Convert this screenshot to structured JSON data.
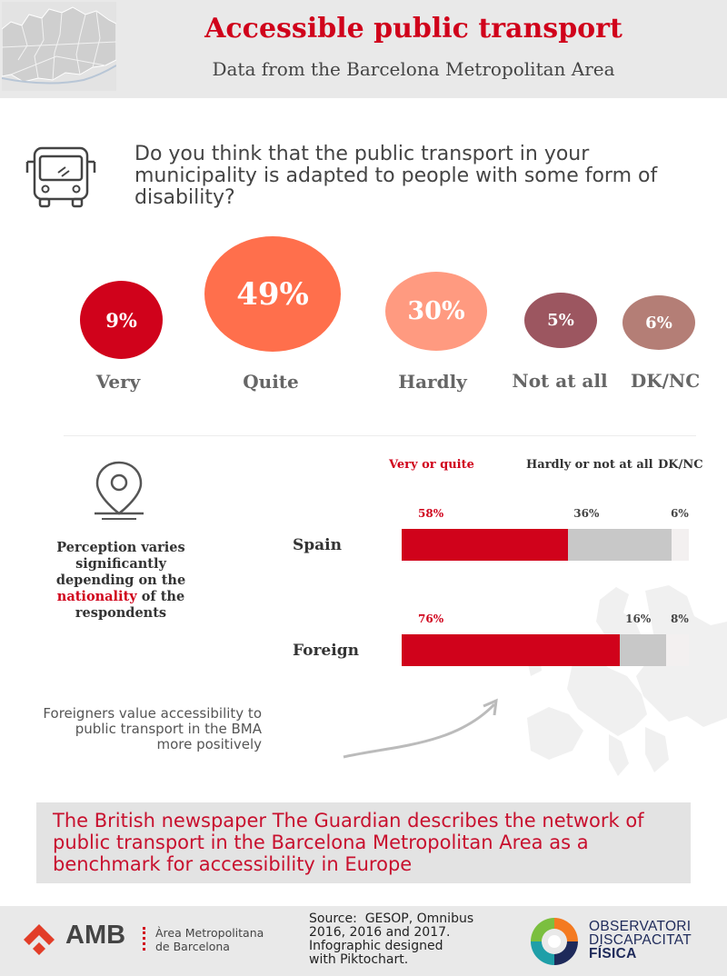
{
  "header": {
    "title": "Accessible public transport",
    "subtitle": "Data from the Barcelona Metropolitan Area"
  },
  "question": {
    "icon": "bus-icon",
    "text": "Do you think that the public transport in your municipality is adapted to people with some form of disability?"
  },
  "responses": [
    {
      "label": "Very",
      "value": 9,
      "display": "9%",
      "color": "#d0021b"
    },
    {
      "label": "Quite",
      "value": 49,
      "display": "49%",
      "color": "#ff6f4c"
    },
    {
      "label": "Hardly",
      "value": 30,
      "display": "30%",
      "color": "#ff9a80"
    },
    {
      "label": "Not at all",
      "value": 5,
      "display": "5%",
      "color": "#9c5660"
    },
    {
      "label": "DK/NC",
      "value": 6,
      "display": "6%",
      "color": "#b47e76"
    }
  ],
  "nationality": {
    "icon": "location-pin-icon",
    "text_before": "Perception varies significantly depending on the",
    "highlight": "nationality",
    "text_after": "of the respondents"
  },
  "chart_data": {
    "type": "bar",
    "orientation": "horizontal",
    "stacked": true,
    "categories": [
      "Spain",
      "Foreign"
    ],
    "series": [
      {
        "name": "Very or quite",
        "values": [
          58,
          76
        ],
        "labels": [
          "58%",
          "76%"
        ],
        "color": "#d0021b"
      },
      {
        "name": "Hardly or not at all",
        "values": [
          36,
          16
        ],
        "labels": [
          "36%",
          "16%"
        ],
        "color": "#c8c8c8"
      },
      {
        "name": "DK/NC",
        "values": [
          6,
          8
        ],
        "labels": [
          "6%",
          "8%"
        ],
        "color": "#f3f0f0"
      }
    ],
    "xlim": [
      0,
      100
    ],
    "legend_position": "top"
  },
  "note": "Foreigners value accessibility to public transport in the BMA more positively",
  "guardian": "The British newspaper The Guardian describes the network of public transport in the Barcelona Metropolitan Area as a benchmark for accessibility in Europe",
  "footer": {
    "amb_logo": "AMB",
    "amb_name_line1": "Àrea Metropolitana",
    "amb_name_line2": "de Barcelona",
    "source_line1": "Source:  GESOP, Omnibus",
    "source_line2": "2016, 2016 and 2017.",
    "source_line3": "Infographic designed",
    "source_line4": "with Piktochart.",
    "obs_line1": "OBSERVATORI",
    "obs_line2": "DISCAPACITAT",
    "obs_line3": "FÍSICA"
  }
}
